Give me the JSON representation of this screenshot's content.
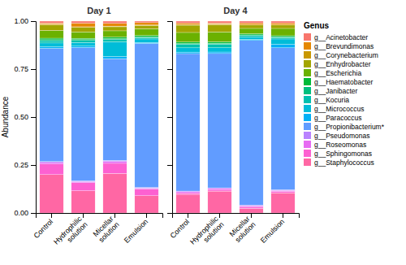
{
  "chart_data": [
    {
      "type": "bar",
      "stacked": true,
      "title": "Day 1",
      "y_label": "Abundance",
      "grid": false,
      "categories": [
        "Control",
        "Hydrophilic\nsolution",
        "Micellar\nsolution",
        "Emulsion"
      ],
      "ylim": [
        0.0,
        1.0
      ],
      "yticks": [
        {
          "value": 0.0,
          "label": "0.00"
        },
        {
          "value": 0.25,
          "label": "0.25"
        },
        {
          "value": 0.5,
          "label": "0.50"
        },
        {
          "value": 0.75,
          "label": "0.75"
        },
        {
          "value": 1.0,
          "label": "1.00"
        }
      ],
      "series": [
        {
          "name": "g__Acinetobacter",
          "color": "#F8766D",
          "values": [
            0.01,
            0.0105263158,
            0.0117647059,
            0.008
          ]
        },
        {
          "name": "g__Brevundimonas",
          "color": "#E58700",
          "values": [
            0.006,
            0.0189473684,
            0.0141176471,
            0.012
          ]
        },
        {
          "name": "g__Corynebacterium",
          "color": "#C99800",
          "values": [
            0.003,
            0.0031578947,
            0.0035294118,
            0.002
          ]
        },
        {
          "name": "g__Enhydrobacter",
          "color": "#A3A500",
          "values": [
            0.03,
            0.0231578947,
            0.0211764706,
            0.018
          ]
        },
        {
          "name": "g__Escherichia",
          "color": "#6BB100",
          "values": [
            0.04,
            0.0336842105,
            0.0329411765,
            0.035
          ]
        },
        {
          "name": "g__Haematobacter",
          "color": "#00BA38",
          "values": [
            0.008,
            0.0073684211,
            0.0082352941,
            0.007
          ]
        },
        {
          "name": "g__Janibacter",
          "color": "#00BF7D",
          "values": [
            0.005,
            0.0042105263,
            0.0047058824,
            0.003
          ]
        },
        {
          "name": "g__Kocuria",
          "color": "#00C0AF",
          "values": [
            0.012,
            0.0105263158,
            0.0117647059,
            0.008
          ]
        },
        {
          "name": "g__Micrococcus",
          "color": "#00BCD8",
          "values": [
            0.02,
            0.0189473684,
            0.0764705882,
            0.018
          ]
        },
        {
          "name": "g__Paracoccus",
          "color": "#00B0F6",
          "values": [
            0.008,
            0.0073684211,
            0.0117647059,
            0.006
          ]
        },
        {
          "name": "g__Propionibacterium*",
          "color": "#619CFF",
          "values": [
            0.59,
            0.6947368421,
            0.5294117647,
            0.75
          ]
        },
        {
          "name": "g__Pseudomonas",
          "color": "#B983FF",
          "values": [
            0.005,
            0.0042105263,
            0.0058823529,
            0.003
          ]
        },
        {
          "name": "g__Roseomonas",
          "color": "#E76BF3",
          "values": [
            0.008,
            0.0052631579,
            0.0094117647,
            0.005
          ]
        },
        {
          "name": "g__Sphingomonas",
          "color": "#FD61D1",
          "values": [
            0.055,
            0.0421052632,
            0.0529411765,
            0.035
          ]
        },
        {
          "name": "g__Staphylococcus",
          "color": "#FF67A4",
          "values": [
            0.2,
            0.1157894737,
            0.2058823529,
            0.09
          ]
        }
      ]
    },
    {
      "type": "bar",
      "stacked": true,
      "title": "Day 4",
      "grid": false,
      "tick_labels": "x",
      "legend": "right",
      "legend_title": "Genus",
      "categories": [
        "Control",
        "Hydrophilic\nsolution",
        "Micellar\nsolution",
        "Emulsion"
      ],
      "ylim": [
        0.0,
        1.0
      ],
      "yticks": [
        0.0,
        0.25,
        0.5,
        0.75,
        1.0
      ],
      "series": [
        {
          "name": "g__Acinetobacter",
          "color": "#F8766D",
          "values": [
            0.0100200401,
            0.01,
            0.01,
            0.01
          ]
        },
        {
          "name": "g__Brevundimonas",
          "color": "#E58700",
          "values": [
            0.0080160321,
            0.005,
            0.008,
            0.008
          ]
        },
        {
          "name": "g__Corynebacterium",
          "color": "#C99800",
          "values": [
            0.003006012,
            0.003,
            0.002,
            0.002
          ]
        },
        {
          "name": "g__Enhydrobacter",
          "color": "#A3A500",
          "values": [
            0.0380761523,
            0.038,
            0.018,
            0.018
          ]
        },
        {
          "name": "g__Escherichia",
          "color": "#6BB100",
          "values": [
            0.0501002004,
            0.052,
            0.028,
            0.038
          ]
        },
        {
          "name": "g__Haematobacter",
          "color": "#00BA38",
          "values": [
            0.0080160321,
            0.008,
            0.006,
            0.006
          ]
        },
        {
          "name": "g__Janibacter",
          "color": "#00BF7D",
          "values": [
            0.004008016,
            0.005,
            0.003,
            0.003
          ]
        },
        {
          "name": "g__Kocuria",
          "color": "#00C0AF",
          "values": [
            0.0180360721,
            0.018,
            0.008,
            0.008
          ]
        },
        {
          "name": "g__Micrococcus",
          "color": "#00BCD8",
          "values": [
            0.0220440882,
            0.022,
            0.012,
            0.028
          ]
        },
        {
          "name": "g__Paracoccus",
          "color": "#00B0F6",
          "values": [
            0.0080160321,
            0.008,
            0.006,
            0.018
          ]
        },
        {
          "name": "g__Propionibacterium*",
          "color": "#619CFF",
          "values": [
            0.7164328657,
            0.7,
            0.858,
            0.74
          ]
        },
        {
          "name": "g__Pseudomonas",
          "color": "#B983FF",
          "values": [
            0.003006012,
            0.003,
            0.003,
            0.003
          ]
        },
        {
          "name": "g__Roseomonas",
          "color": "#E76BF3",
          "values": [
            0.006012024,
            0.006,
            0.006,
            0.005
          ]
        },
        {
          "name": "g__Sphingomonas",
          "color": "#FD61D1",
          "values": [
            0.0080160321,
            0.008,
            0.008,
            0.008
          ]
        },
        {
          "name": "g__Staphylococcus",
          "color": "#FF67A4",
          "values": [
            0.0971943888,
            0.114,
            0.024,
            0.105
          ]
        }
      ]
    }
  ]
}
